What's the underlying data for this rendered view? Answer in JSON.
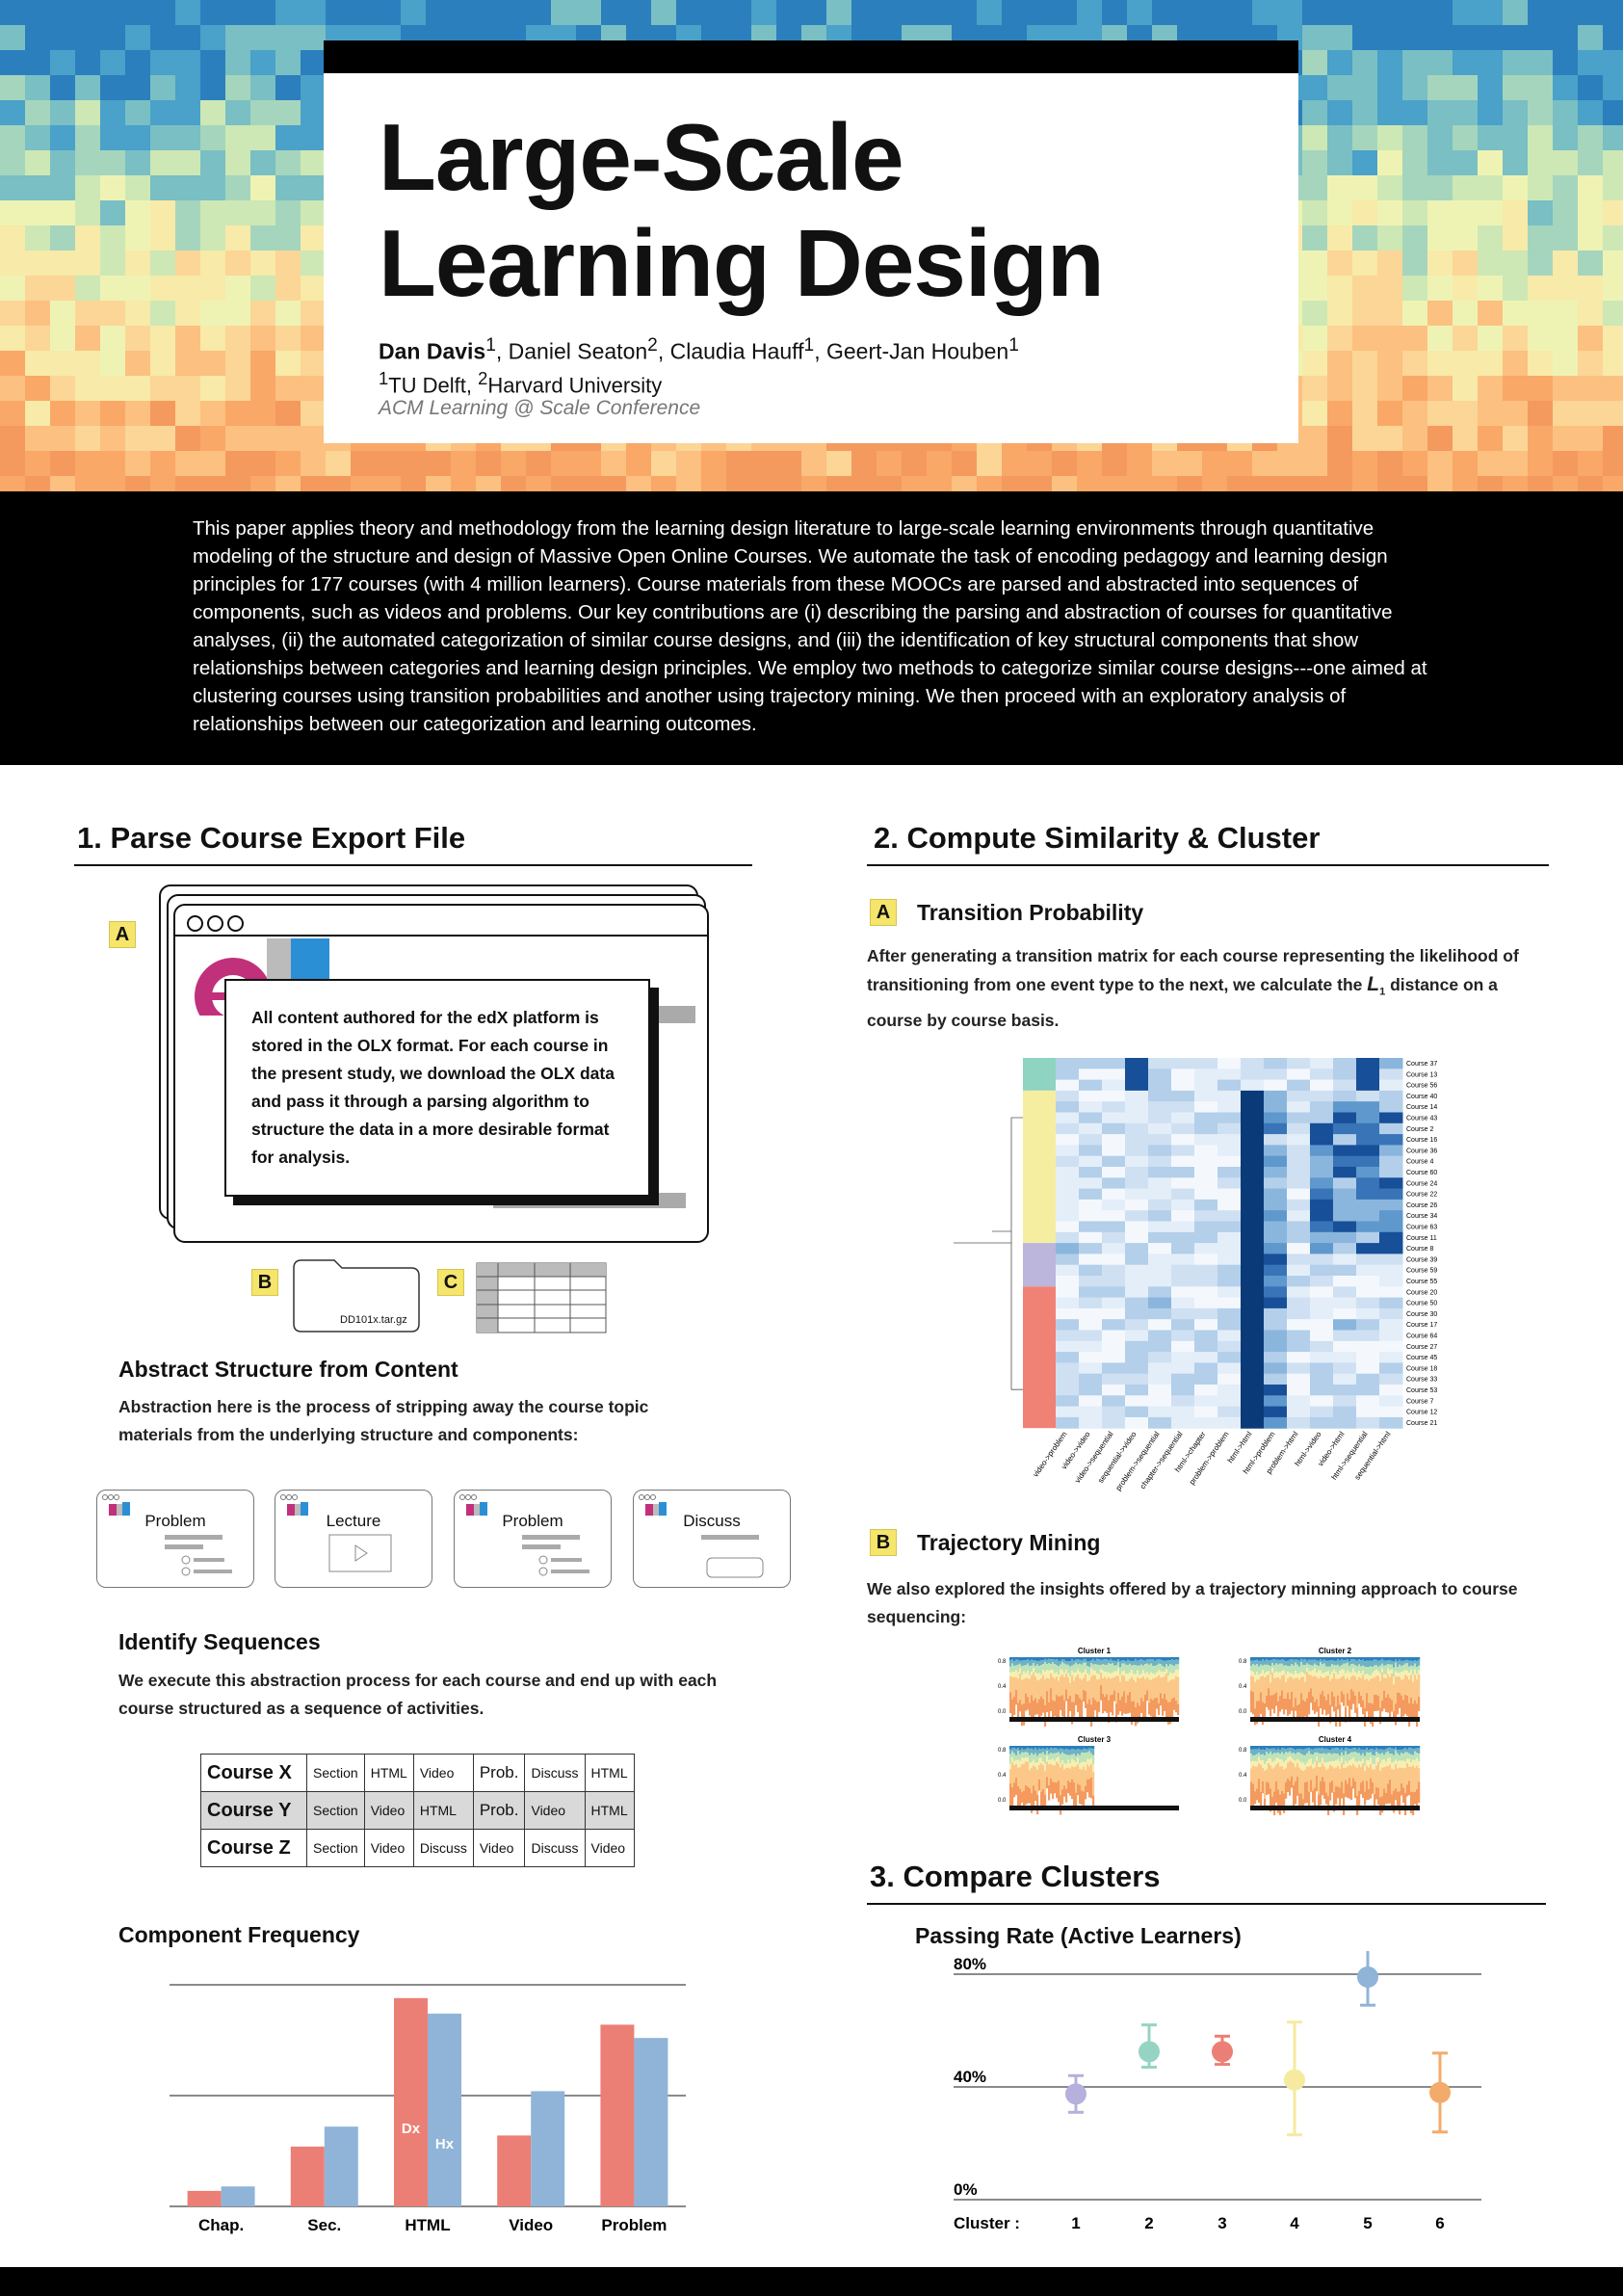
{
  "header": {
    "title_line1": "Large-Scale",
    "title_line2": "Learning Design",
    "author_lead": "Dan Davis",
    "authors_rest_1": ", Daniel Seaton",
    "authors_rest_2": ", Claudia Hauff",
    "authors_rest_3": ", Geert-Jan Houben",
    "sup_1": "1",
    "sup_2": "2",
    "affil_1": "TU Delft, ",
    "affil_2": "Harvard University",
    "venue": "ACM Learning @ Scale Conference"
  },
  "abstract": "This paper applies theory and methodology from the learning design literature to large-scale learning environments through quantitative modeling of the structure and design of Massive Open Online Courses. We automate the task of encoding pedagogy and learning design principles for 177 courses (with 4 million learners). Course materials from these MOOCs are parsed and abstracted into sequences of components, such as videos and problems. Our key contributions are (i) describing the parsing and abstraction of courses for quantitative analyses, (ii) the automated categorization of similar course designs, and (iii) the identification of key structural components that show relationships between categories and learning design principles. We employ two methods to categorize similar course designs---one aimed at clustering courses using transition probabilities and another using trajectory mining. We then proceed with an exploratory analysis of relationships between our categorization and learning outcomes.",
  "section1": {
    "heading": "1. Parse Course Export File",
    "badge_a": "A",
    "badge_b": "B",
    "badge_c": "C",
    "logo_text": "edX",
    "olx_text": "All content authored for the edX platform is stored in the OLX format.  For each course in the present study, we download the OLX data and pass it through a  parsing algorithm to structure the data in a more desirable format for analysis.",
    "file_name": "DD101x.tar.gz",
    "abstract_heading": "Abstract Structure from Content",
    "abstract_text": "Abstraction here is the process of stripping away the course topic materials from the underlying structure and components:",
    "cards": [
      "Problem",
      "Lecture",
      "Problem",
      "Discuss"
    ],
    "seq_heading": "Identify Sequences",
    "seq_text": "We execute this abstraction process for each course and end up with each course structured as a sequence of activities.",
    "seq_table": [
      [
        "Course X",
        "Section",
        "HTML",
        "Video",
        "Prob.",
        "Discuss",
        "HTML"
      ],
      [
        "Course Y",
        "Section",
        "Video",
        "HTML",
        "Prob.",
        "Video",
        "HTML"
      ],
      [
        "Course Z",
        "Section",
        "Video",
        "Discuss",
        "Video",
        "Discuss",
        "Video"
      ]
    ],
    "freq_heading": "Component Frequency"
  },
  "section2": {
    "heading": "2. Compute Similarity & Cluster",
    "badge_a": "A",
    "badge_b": "B",
    "tp_heading": "Transition Probability",
    "tp_text_1": "After generating a transition  matrix for each course representing the likelihood of transitioning from one event type to the next, we calculate the ",
    "tp_L": "L",
    "tp_sub": "1",
    "tp_text_2": " distance on a course by course basis.",
    "heatmap_rows": [
      "Course 37",
      "Course 13",
      "Course 56",
      "Course 40",
      "Course 14",
      "Course 43",
      "Course 2",
      "Course 16",
      "Course 36",
      "Course 4",
      "Course 60",
      "Course 24",
      "Course 22",
      "Course 26",
      "Course 34",
      "Course 63",
      "Course 11",
      "Course 8",
      "Course 39",
      "Course 59",
      "Course 55",
      "Course 20",
      "Course 50",
      "Course 30",
      "Course 17",
      "Course 64",
      "Course 27",
      "Course 45",
      "Course 18",
      "Course 33",
      "Course 53",
      "Course 7",
      "Course 12",
      "Course 21"
    ],
    "heatmap_cols": [
      "video->problem",
      "video->video",
      "video->sequential",
      "sequential->video",
      "problem->sequential",
      "chapter->sequential",
      "html->chapter",
      "problem->problem",
      "html->html",
      "html->problem",
      "problem->html",
      "html->video",
      "video->html",
      "html->sequential",
      "sequential->html"
    ],
    "heatmap_groups": [
      {
        "color": "#8fd3c1"
      },
      {
        "color": "#f5eea0"
      },
      {
        "color": "#bcb5dc"
      },
      {
        "color": "#f08175"
      }
    ],
    "tm_heading": "Trajectory Mining",
    "tm_text": "We also explored the insights offered by a trajectory minning approach to course sequencing:",
    "clusters": [
      {
        "title": "Cluster 1",
        "fill": 1.0
      },
      {
        "title": "Cluster 2",
        "fill": 1.0
      },
      {
        "title": "Cluster 3",
        "fill": 0.5
      },
      {
        "title": "Cluster 4",
        "fill": 1.0
      }
    ],
    "mini_ticks": [
      "0.8",
      "0.4",
      "0.0"
    ]
  },
  "section3": {
    "heading": "3. Compare Clusters",
    "chart_title": "Passing Rate (Active Learners)"
  },
  "chart_data": [
    {
      "type": "bar",
      "title": "Component Frequency",
      "categories": [
        "Chap.",
        "Sec.",
        "HTML",
        "Video",
        "Problem"
      ],
      "series": [
        {
          "name": "Dx",
          "color": "#ec7f75",
          "values": [
            7,
            27,
            94,
            32,
            82
          ]
        },
        {
          "name": "Hx",
          "color": "#8fb4d8",
          "values": [
            9,
            36,
            87,
            52,
            76
          ]
        }
      ],
      "ylim": [
        0,
        100
      ],
      "gridlines": [
        0,
        50,
        100
      ]
    },
    {
      "type": "scatter",
      "title": "Passing Rate (Active Learners)",
      "xlabel": "Cluster :",
      "categories": [
        "1",
        "2",
        "3",
        "4",
        "5",
        "6"
      ],
      "values": [
        37.5,
        52.5,
        52.5,
        42.5,
        79,
        38
      ],
      "errors": [
        [
          31,
          44
        ],
        [
          47,
          62
        ],
        [
          48,
          58
        ],
        [
          23,
          63
        ],
        [
          69,
          91
        ],
        [
          24,
          52
        ]
      ],
      "colors": [
        "#b5b0dc",
        "#95d4c2",
        "#ec7f75",
        "#f5eaa0",
        "#8fb4d8",
        "#f3ab6c"
      ],
      "y_ticks": [
        "80%",
        "40%",
        "0%"
      ],
      "ylim": [
        0,
        80
      ],
      "annotation": "***"
    }
  ]
}
